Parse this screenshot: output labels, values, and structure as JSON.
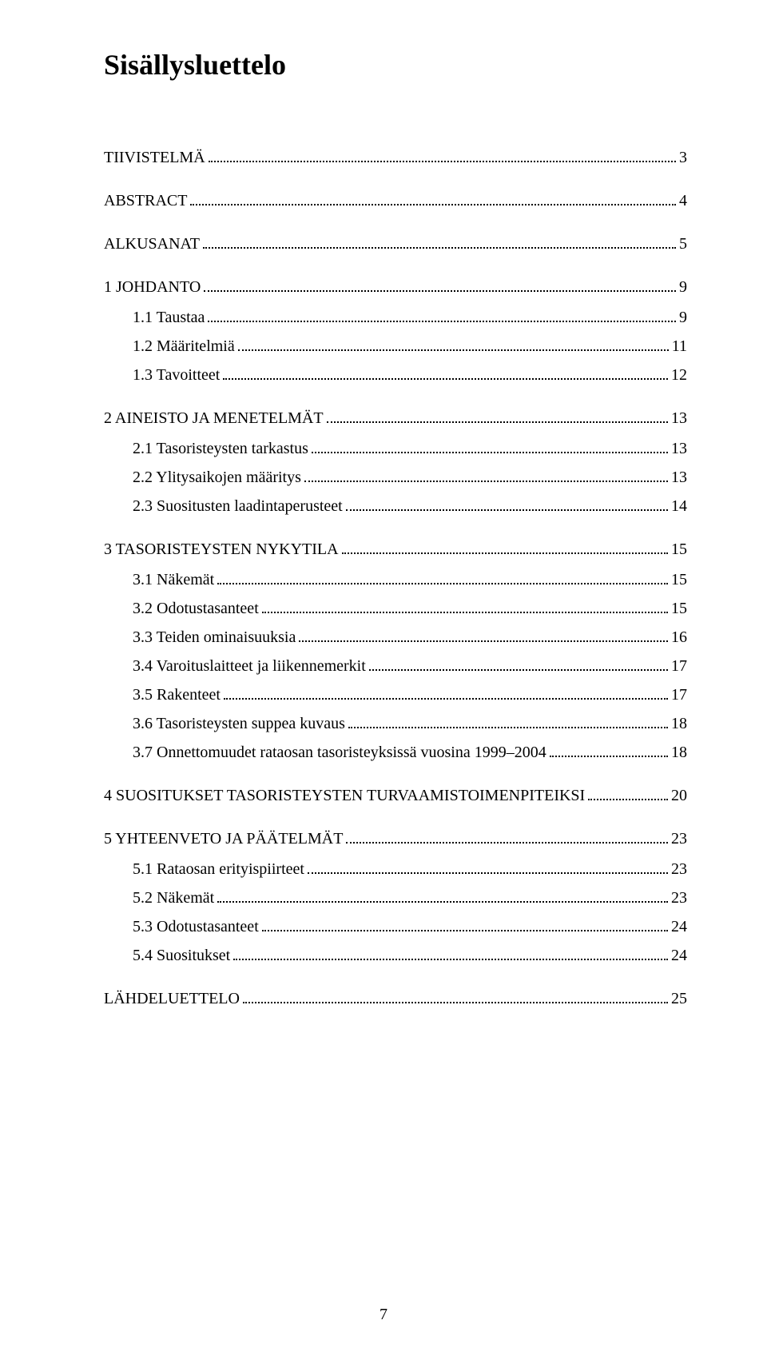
{
  "title": "Sisällysluettelo",
  "footer_page_number": "7",
  "entries": [
    {
      "label": "TIIVISTELMÄ",
      "page": "3",
      "indent": 0,
      "sectionTop": false
    },
    {
      "label": "ABSTRACT",
      "page": "4",
      "indent": 0,
      "sectionTop": true
    },
    {
      "label": "ALKUSANAT",
      "page": "5",
      "indent": 0,
      "sectionTop": true
    },
    {
      "label": "1 JOHDANTO",
      "page": "9",
      "indent": 0,
      "sectionTop": true
    },
    {
      "label": "1.1 Taustaa",
      "page": "9",
      "indent": 1,
      "sectionTop": false
    },
    {
      "label": "1.2 Määritelmiä",
      "page": "11",
      "indent": 1,
      "sectionTop": false
    },
    {
      "label": "1.3 Tavoitteet",
      "page": "12",
      "indent": 1,
      "sectionTop": false
    },
    {
      "label": "2 AINEISTO JA MENETELMÄT",
      "page": "13",
      "indent": 0,
      "sectionTop": true
    },
    {
      "label": "2.1 Tasoristeysten tarkastus",
      "page": "13",
      "indent": 1,
      "sectionTop": false
    },
    {
      "label": "2.2 Ylitysaikojen määritys",
      "page": "13",
      "indent": 1,
      "sectionTop": false
    },
    {
      "label": "2.3 Suositusten laadintaperusteet",
      "page": "14",
      "indent": 1,
      "sectionTop": false
    },
    {
      "label": "3 TASORISTEYSTEN NYKYTILA",
      "page": "15",
      "indent": 0,
      "sectionTop": true
    },
    {
      "label": "3.1 Näkemät",
      "page": "15",
      "indent": 1,
      "sectionTop": false
    },
    {
      "label": "3.2 Odotustasanteet",
      "page": "15",
      "indent": 1,
      "sectionTop": false
    },
    {
      "label": "3.3 Teiden ominaisuuksia",
      "page": "16",
      "indent": 1,
      "sectionTop": false
    },
    {
      "label": "3.4 Varoituslaitteet ja liikennemerkit",
      "page": "17",
      "indent": 1,
      "sectionTop": false
    },
    {
      "label": "3.5 Rakenteet",
      "page": "17",
      "indent": 1,
      "sectionTop": false
    },
    {
      "label": "3.6 Tasoristeysten suppea kuvaus",
      "page": "18",
      "indent": 1,
      "sectionTop": false
    },
    {
      "label": "3.7 Onnettomuudet rataosan tasoristeyksissä vuosina 1999–2004",
      "page": "18",
      "indent": 1,
      "sectionTop": false
    },
    {
      "label": "4 SUOSITUKSET TASORISTEYSTEN TURVAAMISTOIMENPITEIKSI",
      "page": "20",
      "indent": 0,
      "sectionTop": true
    },
    {
      "label": "5 YHTEENVETO JA PÄÄTELMÄT",
      "page": "23",
      "indent": 0,
      "sectionTop": true
    },
    {
      "label": "5.1 Rataosan erityispiirteet",
      "page": "23",
      "indent": 1,
      "sectionTop": false
    },
    {
      "label": "5.2 Näkemät",
      "page": "23",
      "indent": 1,
      "sectionTop": false
    },
    {
      "label": "5.3 Odotustasanteet",
      "page": "24",
      "indent": 1,
      "sectionTop": false
    },
    {
      "label": "5.4 Suositukset",
      "page": "24",
      "indent": 1,
      "sectionTop": false
    },
    {
      "label": "LÄHDELUETTELO",
      "page": "25",
      "indent": 0,
      "sectionTop": true
    }
  ]
}
